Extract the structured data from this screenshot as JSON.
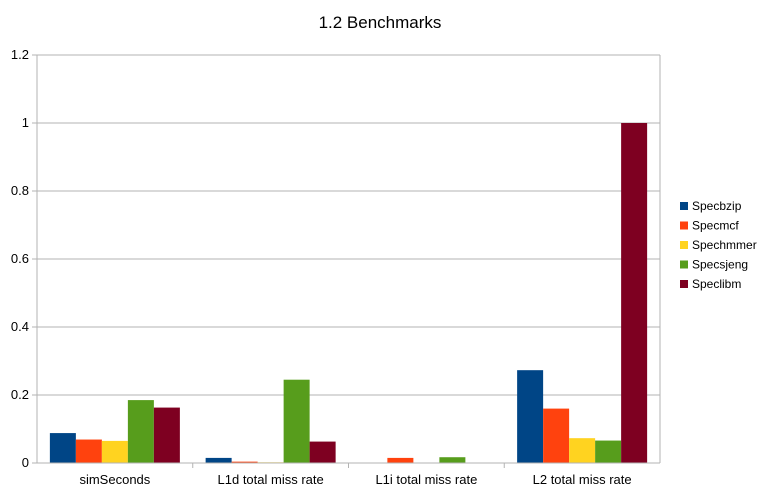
{
  "chart_data": {
    "type": "bar",
    "title": "1.2 Benchmarks",
    "xlabel": "",
    "ylabel": "",
    "ylim": [
      0,
      1.2
    ],
    "yticks": [
      0,
      0.2,
      0.4,
      0.6,
      0.8,
      1,
      1.2
    ],
    "ytick_labels": [
      "0",
      "0.2",
      "0.4",
      "0.6",
      "0.8",
      "1",
      "1.2"
    ],
    "grid": true,
    "legend_position": "right",
    "categories": [
      "simSeconds",
      "L1d total miss rate",
      "L1i total miss rate",
      "L2 total miss rate"
    ],
    "series": [
      {
        "name": "Specbzip",
        "color": "#004586",
        "values": [
          0.088,
          0.015,
          0.0,
          0.273
        ]
      },
      {
        "name": "Specmcf",
        "color": "#ff420e",
        "values": [
          0.069,
          0.004,
          0.015,
          0.16
        ]
      },
      {
        "name": "Spechmmer",
        "color": "#ffd320",
        "values": [
          0.065,
          0.002,
          0.0,
          0.073
        ]
      },
      {
        "name": "Specsjeng",
        "color": "#579d1c",
        "values": [
          0.185,
          0.245,
          0.017,
          0.066
        ]
      },
      {
        "name": "Speclibm",
        "color": "#7e0021",
        "values": [
          0.163,
          0.063,
          0.0,
          1.0
        ]
      }
    ]
  }
}
